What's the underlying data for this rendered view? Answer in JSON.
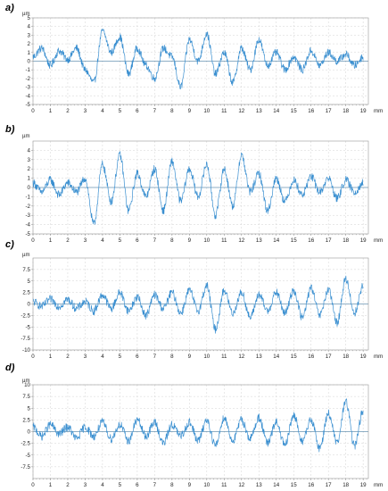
{
  "chart_data": [
    {
      "type": "line",
      "panel_label": "a)",
      "ylabel": "µm",
      "xunit": "mm",
      "xlim": [
        0,
        19.3
      ],
      "ylim": [
        -5,
        5
      ],
      "yticks": [
        5,
        4,
        3,
        2,
        1,
        0,
        -1,
        -2,
        -3,
        -4,
        -5
      ],
      "ytick_labels": [
        "5",
        "4",
        "3",
        "2",
        "1",
        "0",
        "-1",
        "-2",
        "-3",
        "-4",
        "-5"
      ],
      "xticks": [
        0,
        1,
        2,
        3,
        4,
        5,
        6,
        7,
        8,
        9,
        10,
        11,
        12,
        13,
        14,
        15,
        16,
        17,
        18,
        19
      ],
      "xtick_labels": [
        "0",
        "1",
        "2",
        "3",
        "4",
        "5",
        "6",
        "7",
        "8",
        "9",
        "10",
        "11",
        "12",
        "13",
        "14",
        "15",
        "16",
        "17",
        "18",
        "19"
      ],
      "grid": true,
      "color": "#3a8fd0",
      "x": [
        0,
        0.5,
        1,
        1.5,
        2,
        2.5,
        3,
        3.5,
        4,
        4.5,
        5,
        5.5,
        6,
        6.5,
        7,
        7.5,
        8,
        8.5,
        9,
        9.5,
        10,
        10.5,
        11,
        11.5,
        12,
        12.5,
        13,
        13.5,
        14,
        14.5,
        15,
        15.5,
        16,
        16.5,
        17,
        17.5,
        18,
        18.5,
        19
      ],
      "y": [
        0.5,
        1.5,
        -0.5,
        1.2,
        0.2,
        1.5,
        -1.0,
        -2.5,
        3.5,
        1.0,
        2.8,
        -1.5,
        1.5,
        -0.5,
        -2.0,
        1.5,
        0.5,
        -3.0,
        2.5,
        0,
        3.2,
        -1.5,
        1.0,
        -2.5,
        1.5,
        -1.0,
        2.5,
        -0.5,
        1.0,
        -1.0,
        0.5,
        -1.0,
        1.2,
        -0.5,
        1.0,
        0,
        0.8,
        -0.5,
        0.5
      ]
    },
    {
      "type": "line",
      "panel_label": "b)",
      "ylabel": "µm",
      "xunit": "mm",
      "xlim": [
        0,
        19.3
      ],
      "ylim": [
        -5,
        5
      ],
      "yticks": [
        4,
        3,
        2,
        1,
        0,
        -1,
        -2,
        -3,
        -4,
        -5
      ],
      "ytick_labels": [
        "4",
        "3",
        "2",
        "1",
        "0",
        "-1",
        "-2",
        "-3",
        "-4",
        "-5"
      ],
      "xticks": [
        0,
        1,
        2,
        3,
        4,
        5,
        6,
        7,
        8,
        9,
        10,
        11,
        12,
        13,
        14,
        15,
        16,
        17,
        18,
        19
      ],
      "xtick_labels": [
        "0",
        "1",
        "2",
        "3",
        "4",
        "5",
        "6",
        "7",
        "8",
        "9",
        "10",
        "11",
        "12",
        "13",
        "14",
        "15",
        "16",
        "17",
        "18",
        "19"
      ],
      "grid": true,
      "color": "#3a8fd0",
      "x": [
        0,
        0.5,
        1,
        1.5,
        2,
        2.5,
        3,
        3.5,
        4,
        4.5,
        5,
        5.5,
        6,
        6.5,
        7,
        7.5,
        8,
        8.5,
        9,
        9.5,
        10,
        10.5,
        11,
        11.5,
        12,
        12.5,
        13,
        13.5,
        14,
        14.5,
        15,
        15.5,
        16,
        16.5,
        17,
        17.5,
        18,
        18.5,
        19
      ],
      "y": [
        0.5,
        -0.5,
        0.8,
        -0.8,
        0.5,
        -0.5,
        1.0,
        -4.0,
        2.5,
        -1.5,
        3.5,
        -2.5,
        1.5,
        -1.0,
        2.0,
        -2.5,
        2.8,
        -1.5,
        2.0,
        -1.0,
        2.5,
        -3.0,
        2.0,
        -2.0,
        3.5,
        -0.5,
        1.5,
        -2.5,
        1.0,
        -1.5,
        0.8,
        -0.8,
        1.2,
        -0.5,
        1.0,
        -1.2,
        0.8,
        -0.5,
        0.5
      ]
    },
    {
      "type": "line",
      "panel_label": "c)",
      "ylabel": "µm",
      "xunit": "mm",
      "xlim": [
        0,
        19.3
      ],
      "ylim": [
        -10,
        10
      ],
      "yticks": [
        7.5,
        5,
        2.5,
        0,
        -2.5,
        -5,
        -7.5,
        -10
      ],
      "ytick_labels": [
        "7.5",
        "5",
        "2.5",
        "0",
        "-2.5",
        "-5",
        "-7.5",
        "-10"
      ],
      "xticks": [
        0,
        1,
        2,
        3,
        4,
        5,
        6,
        7,
        8,
        9,
        10,
        11,
        12,
        13,
        14,
        15,
        16,
        17,
        18,
        19
      ],
      "xtick_labels": [
        "0",
        "1",
        "2",
        "3",
        "4",
        "5",
        "6",
        "7",
        "8",
        "9",
        "10",
        "11",
        "12",
        "13",
        "14",
        "15",
        "16",
        "17",
        "18",
        "19"
      ],
      "grid": true,
      "color": "#3a8fd0",
      "x": [
        0,
        0.5,
        1,
        1.5,
        2,
        2.5,
        3,
        3.5,
        4,
        4.5,
        5,
        5.5,
        6,
        6.5,
        7,
        7.5,
        8,
        8.5,
        9,
        9.5,
        10,
        10.5,
        11,
        11.5,
        12,
        12.5,
        13,
        13.5,
        14,
        14.5,
        15,
        15.5,
        16,
        16.5,
        17,
        17.5,
        18,
        18.5,
        19
      ],
      "y": [
        0.5,
        -0.5,
        1.0,
        -0.5,
        1.0,
        -1.0,
        0.5,
        -1.5,
        2.0,
        -1.0,
        2.5,
        -1.5,
        1.5,
        -2.5,
        2.0,
        -1.0,
        2.5,
        -2.0,
        3.0,
        -1.5,
        4.0,
        -5.5,
        3.0,
        -2.0,
        2.5,
        -3.0,
        2.0,
        -1.5,
        2.5,
        -2.0,
        3.0,
        -3.0,
        3.5,
        -2.5,
        3.0,
        -4.0,
        5.5,
        -2.0,
        4.0
      ]
    },
    {
      "type": "line",
      "panel_label": "d)",
      "ylabel": "µm",
      "xunit": "mm",
      "xlim": [
        0,
        19.3
      ],
      "ylim": [
        -10,
        10
      ],
      "yticks": [
        10,
        7.5,
        5,
        2.5,
        0,
        -2.5,
        -5,
        -7.5
      ],
      "ytick_labels": [
        "10",
        "7.5",
        "5",
        "2.5",
        "0",
        "-2.5",
        "-5",
        "-7.5"
      ],
      "xticks": [
        0,
        1,
        2,
        3,
        4,
        5,
        6,
        7,
        8,
        9,
        10,
        11,
        12,
        13,
        14,
        15,
        16,
        17,
        18,
        19
      ],
      "xtick_labels": [
        "0",
        "1",
        "2",
        "3",
        "4",
        "5",
        "6",
        "7",
        "8",
        "9",
        "10",
        "11",
        "12",
        "13",
        "14",
        "15",
        "16",
        "17",
        "18",
        "19"
      ],
      "grid": true,
      "color": "#3a8fd0",
      "x": [
        0,
        0.5,
        1,
        1.5,
        2,
        2.5,
        3,
        3.5,
        4,
        4.5,
        5,
        5.5,
        6,
        6.5,
        7,
        7.5,
        8,
        8.5,
        9,
        9.5,
        10,
        10.5,
        11,
        11.5,
        12,
        12.5,
        13,
        13.5,
        14,
        14.5,
        15,
        15.5,
        16,
        16.5,
        17,
        17.5,
        18,
        18.5,
        19
      ],
      "y": [
        1.0,
        -1.0,
        1.5,
        -0.5,
        1.0,
        -1.5,
        1.0,
        -1.0,
        2.0,
        -1.5,
        1.5,
        -2.0,
        2.5,
        -1.0,
        2.0,
        -2.5,
        1.5,
        -1.0,
        2.0,
        -2.0,
        2.5,
        -3.0,
        3.0,
        -2.0,
        2.5,
        -1.5,
        3.0,
        -2.5,
        2.0,
        -3.0,
        3.5,
        -2.0,
        2.5,
        -3.5,
        4.0,
        -2.5,
        6.5,
        -3.0,
        4.5
      ]
    }
  ]
}
